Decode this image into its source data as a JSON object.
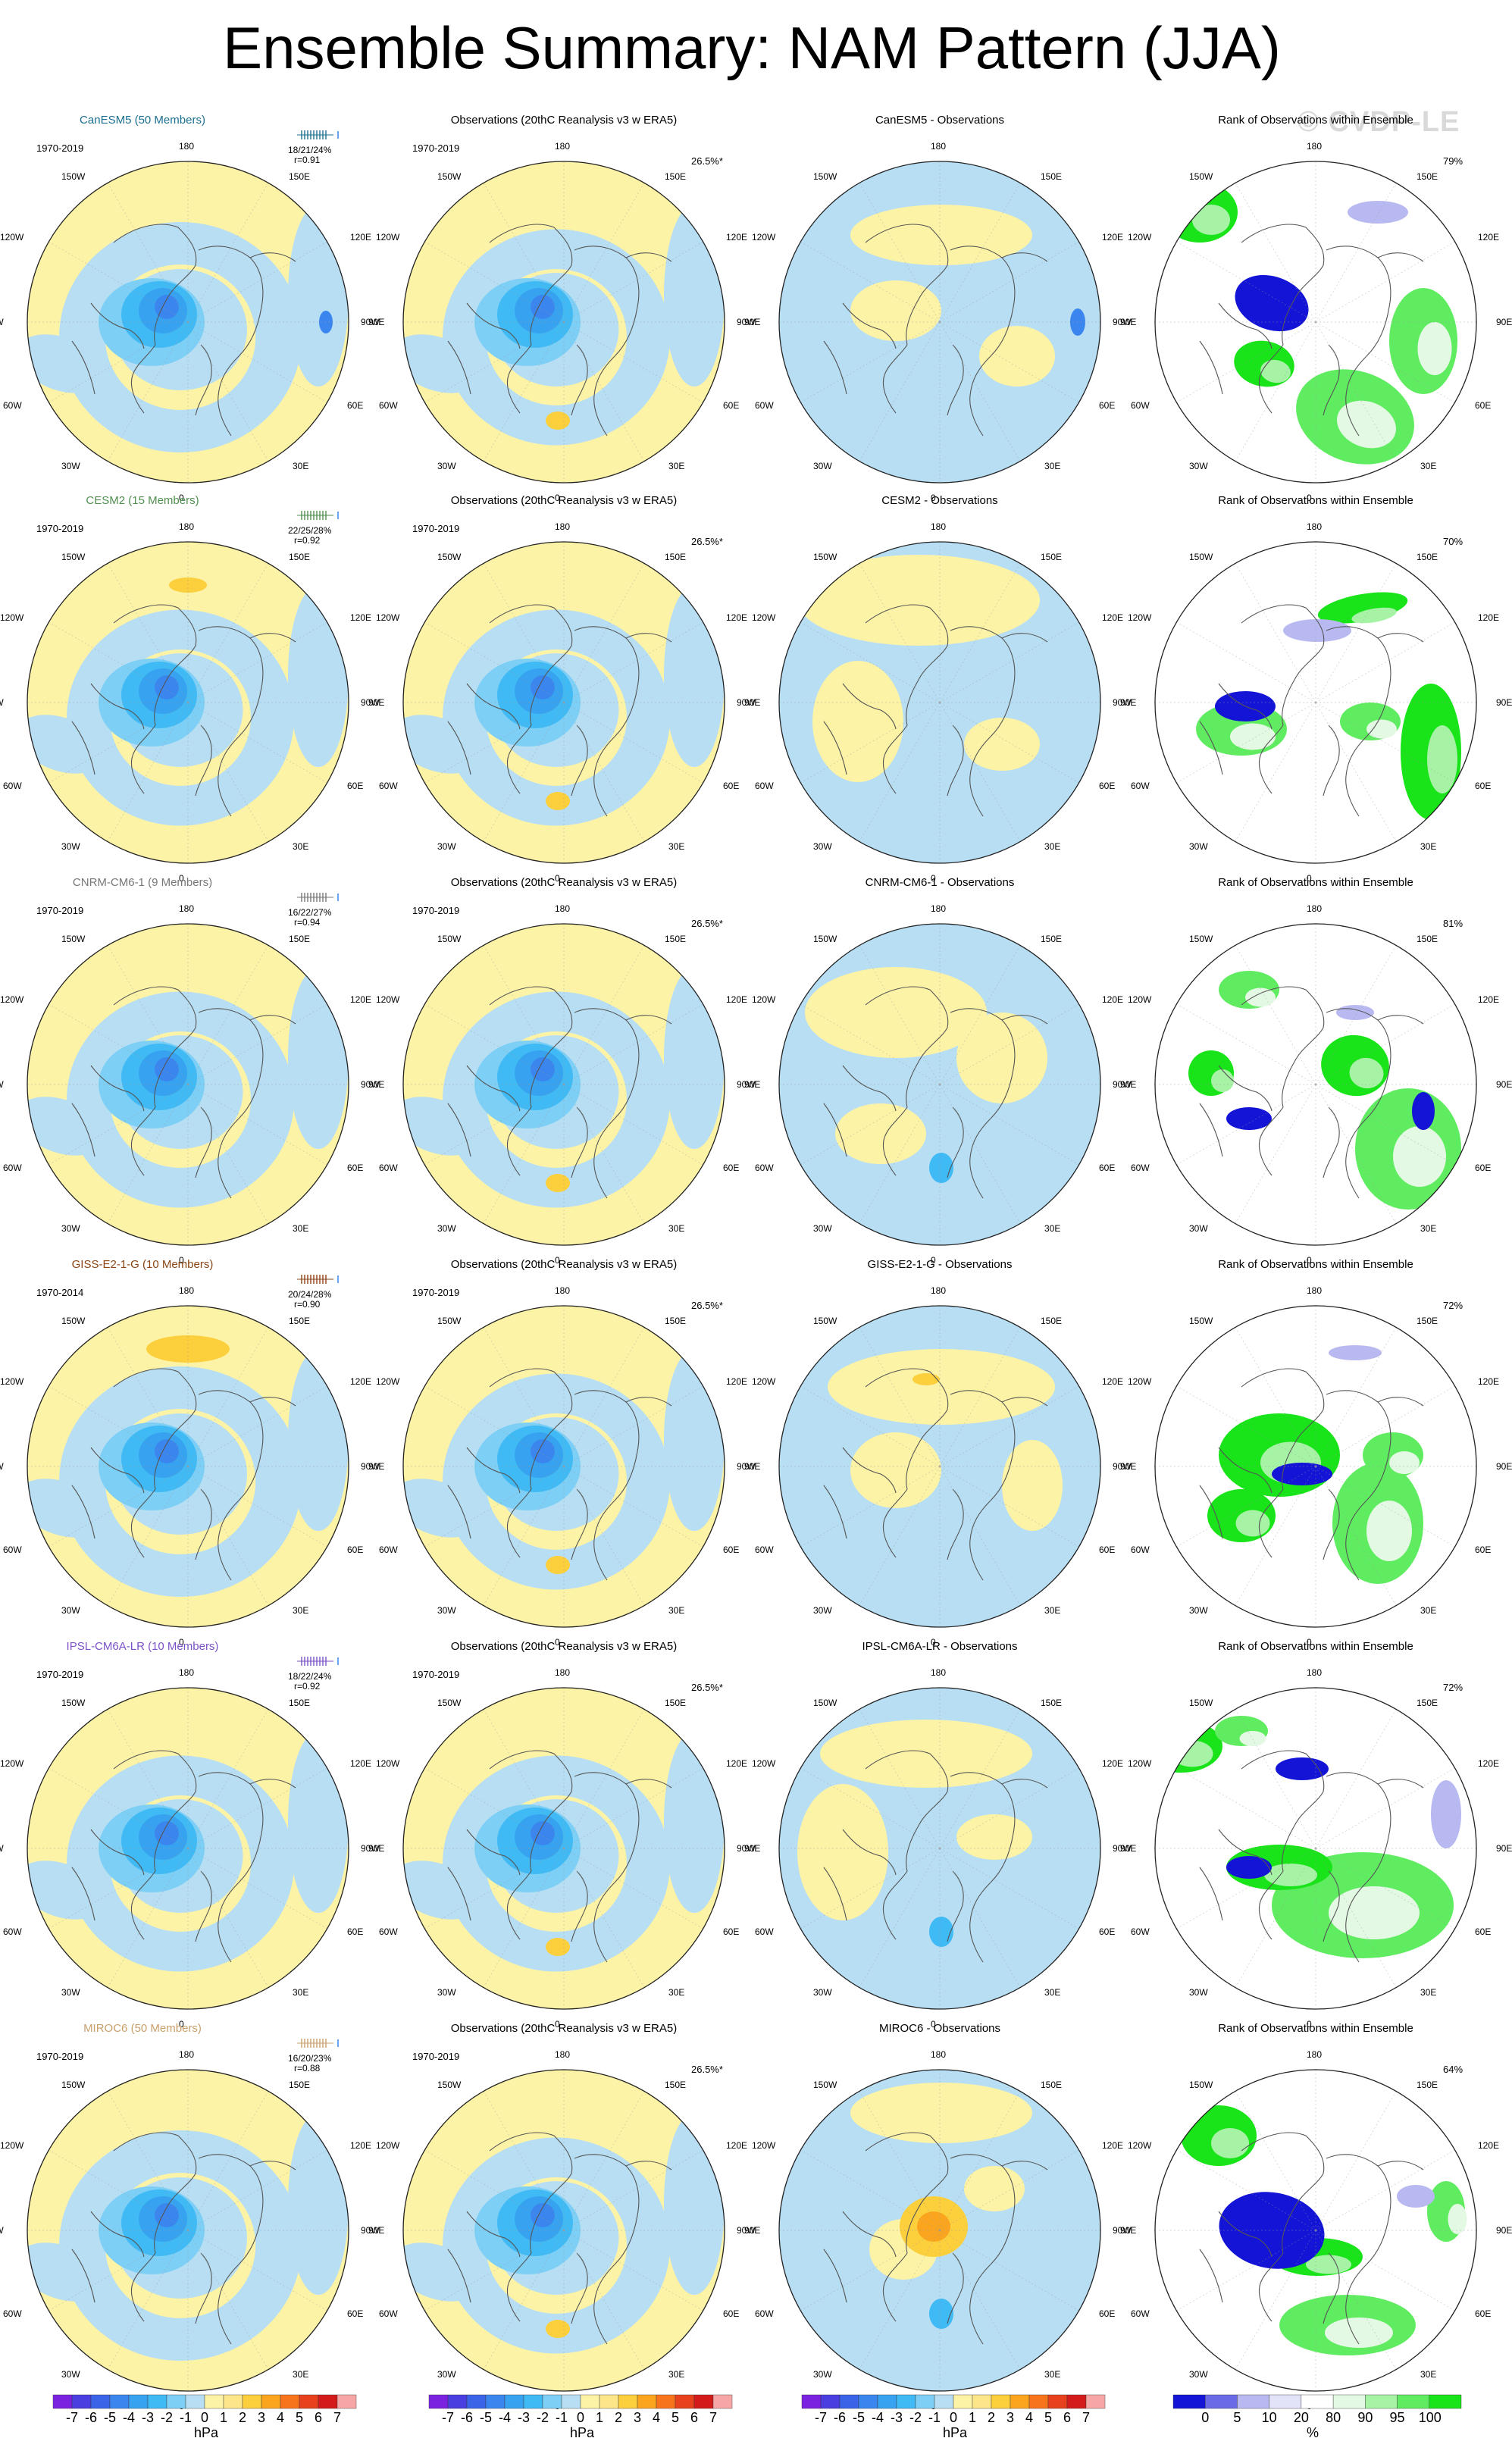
{
  "title": "Ensemble Summary: NAM Pattern (JJA)",
  "watermark": "© CVDP-LE",
  "column_titles": {
    "obs": "Observations (20thC Reanalysis v3 w ERA5)",
    "rank": "Rank of Observations within Ensemble"
  },
  "lon_labels": [
    "180",
    "150E",
    "120E",
    "90E",
    "60E",
    "30E",
    "0",
    "30W",
    "60W",
    "90W",
    "120W",
    "150W"
  ],
  "colors": {
    "model_names": [
      "#1b6f8f",
      "#4f8f4f",
      "#777777",
      "#8b4513",
      "#7b52c7",
      "#c9a06a"
    ]
  },
  "rows": [
    {
      "model": "CanESM5 (50 Members)",
      "model_years": "1970-2019",
      "stats_line1": "18/21/24%",
      "stats_line2": "r=0.91",
      "diff_title": "CanESM5 - Observations",
      "obs_years": "1970-2019",
      "obs_pct": "26.5%*",
      "rank_pct": "79%"
    },
    {
      "model": "CESM2 (15 Members)",
      "model_years": "1970-2019",
      "stats_line1": "22/25/28%",
      "stats_line2": "r=0.92",
      "diff_title": "CESM2 - Observations",
      "obs_years": "1970-2019",
      "obs_pct": "26.5%*",
      "rank_pct": "70%"
    },
    {
      "model": "CNRM-CM6-1 (9 Members)",
      "model_years": "1970-2019",
      "stats_line1": "16/22/27%",
      "stats_line2": "r=0.94",
      "diff_title": "CNRM-CM6-1 - Observations",
      "obs_years": "1970-2019",
      "obs_pct": "26.5%*",
      "rank_pct": "81%"
    },
    {
      "model": "GISS-E2-1-G (10 Members)",
      "model_years": "1970-2014",
      "stats_line1": "20/24/28%",
      "stats_line2": "r=0.90",
      "diff_title": "GISS-E2-1-G - Observations",
      "obs_years": "1970-2019",
      "obs_pct": "26.5%*",
      "rank_pct": "72%"
    },
    {
      "model": "IPSL-CM6A-LR (10 Members)",
      "model_years": "1970-2019",
      "stats_line1": "18/22/24%",
      "stats_line2": "r=0.92",
      "diff_title": "IPSL-CM6A-LR - Observations",
      "obs_years": "1970-2019",
      "obs_pct": "26.5%*",
      "rank_pct": "72%"
    },
    {
      "model": "MIROC6 (50 Members)",
      "model_years": "1970-2019",
      "stats_line1": "16/20/23%",
      "stats_line2": "r=0.88",
      "diff_title": "MIROC6 - Observations",
      "obs_years": "1970-2019",
      "obs_pct": "26.5%*",
      "rank_pct": "64%"
    }
  ],
  "chart_data": [
    {
      "type": "heatmap",
      "description_kind": "sea level pressure anomaly colorbar",
      "unit": "hPa",
      "tick_labels": [
        "-7",
        "-6",
        "-5",
        "-4",
        "-3",
        "-2",
        "-1",
        "0",
        "1",
        "2",
        "3",
        "4",
        "5",
        "6",
        "7"
      ],
      "colors": [
        "#7b22e0",
        "#4a3ee0",
        "#3a63e8",
        "#3b86ee",
        "#37a3f0",
        "#3fbaf5",
        "#7ecff5",
        "#b7def3",
        "#fdf3a6",
        "#fde58a",
        "#fccf3c",
        "#fba51f",
        "#f7741d",
        "#e8411e",
        "#d31b1b",
        "#f7a6a6"
      ]
    },
    {
      "type": "heatmap",
      "description_kind": "rank percentile colorbar",
      "unit": "%",
      "tick_labels": [
        "0",
        "5",
        "10",
        "20",
        "80",
        "90",
        "95",
        "100"
      ],
      "colors": [
        "#1414d6",
        "#6a6ae6",
        "#b9b9f2",
        "#e2e2f8",
        "#ffffff",
        "#e4f9e4",
        "#a6f3a6",
        "#60ec60",
        "#19e319"
      ]
    }
  ]
}
